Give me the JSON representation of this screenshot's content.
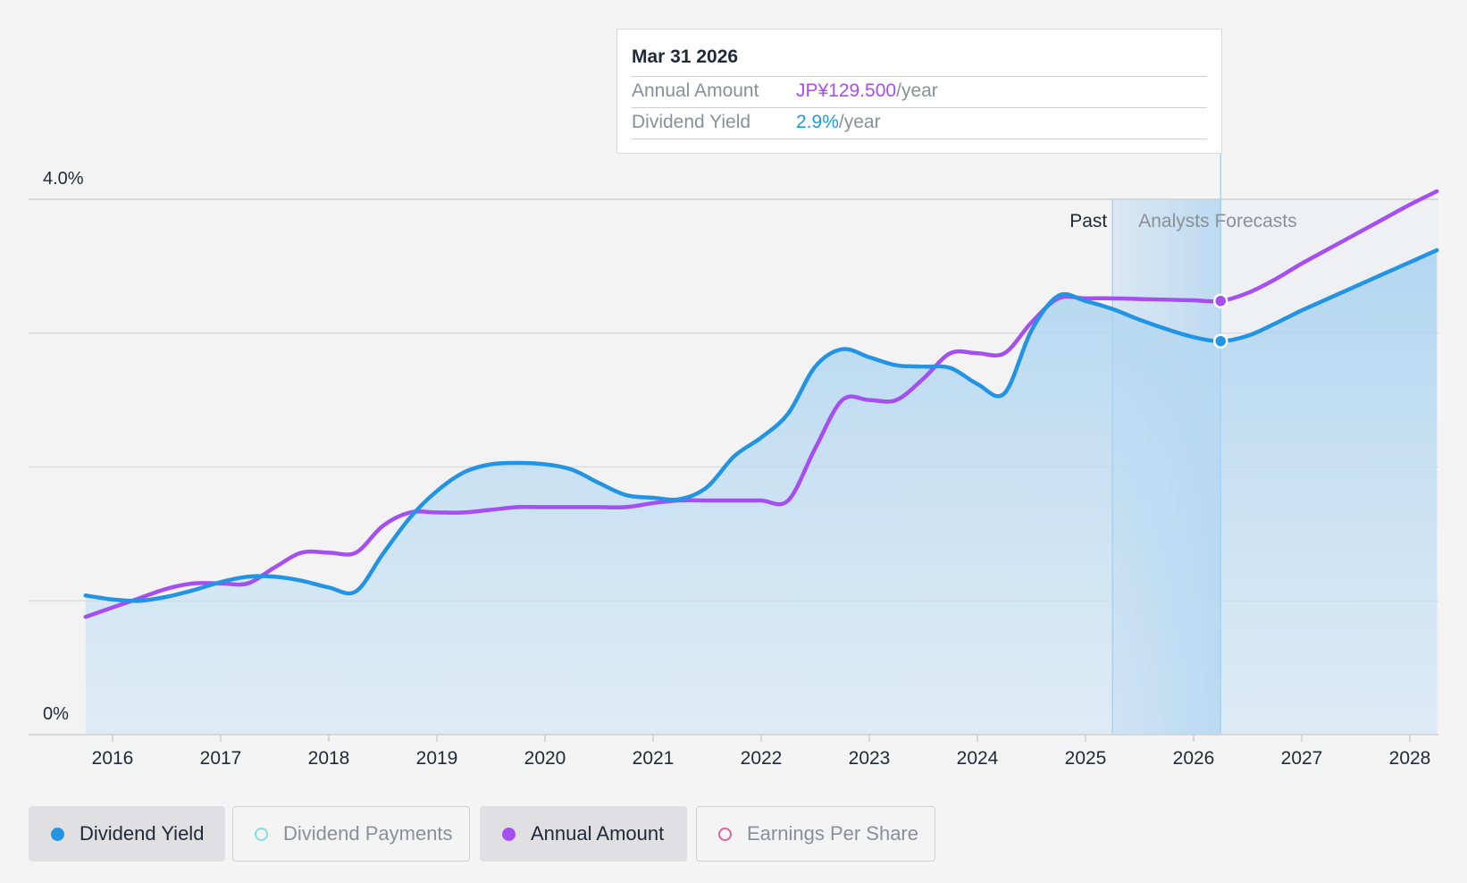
{
  "tooltip": {
    "date": "Mar 31 2026",
    "annual_amount_label": "Annual Amount",
    "annual_amount_value": "JP¥129.500",
    "annual_amount_unit": "/year",
    "dividend_yield_label": "Dividend Yield",
    "dividend_yield_value": "2.9%",
    "dividend_yield_unit": "/year"
  },
  "regions": {
    "past_label": "Past",
    "forecast_label": "Analysts Forecasts"
  },
  "legend": [
    {
      "label": "Dividend Yield",
      "color": "#2394e3",
      "active": true,
      "filled": true
    },
    {
      "label": "Dividend Payments",
      "color": "#7fe0dc",
      "active": false,
      "filled": false
    },
    {
      "label": "Annual Amount",
      "color": "#a64ff0",
      "active": true,
      "filled": true
    },
    {
      "label": "Earnings Per Share",
      "color": "#d9669a",
      "active": false,
      "filled": false
    }
  ],
  "chart_data": {
    "type": "line",
    "y_tick_labels": [
      {
        "value": 4.0,
        "label": "4.0%"
      },
      {
        "value": 0,
        "label": "0%"
      }
    ],
    "ylim": [
      0,
      4.0
    ],
    "xlim": [
      2015.5,
      2028.25
    ],
    "x_ticks": [
      2016,
      2017,
      2018,
      2019,
      2020,
      2021,
      2022,
      2023,
      2024,
      2025,
      2026,
      2027,
      2028
    ],
    "gridlines": [
      1,
      2,
      3,
      4
    ],
    "past_end": 2025.25,
    "forecast_shade_end": 2026.25,
    "highlight_x": 2026.25,
    "colors": {
      "yield": "#2394e3",
      "amount": "#a64ff0"
    },
    "series": [
      {
        "name": "Dividend Yield",
        "values": [
          [
            2015.75,
            1.04
          ],
          [
            2016.0,
            1.01
          ],
          [
            2016.25,
            1.0
          ],
          [
            2016.5,
            1.03
          ],
          [
            2016.75,
            1.08
          ],
          [
            2017.0,
            1.14
          ],
          [
            2017.25,
            1.18
          ],
          [
            2017.5,
            1.18
          ],
          [
            2017.75,
            1.15
          ],
          [
            2018.0,
            1.1
          ],
          [
            2018.25,
            1.07
          ],
          [
            2018.5,
            1.35
          ],
          [
            2018.75,
            1.62
          ],
          [
            2019.0,
            1.82
          ],
          [
            2019.25,
            1.96
          ],
          [
            2019.5,
            2.02
          ],
          [
            2019.75,
            2.03
          ],
          [
            2020.0,
            2.02
          ],
          [
            2020.25,
            1.98
          ],
          [
            2020.5,
            1.88
          ],
          [
            2020.75,
            1.79
          ],
          [
            2021.0,
            1.77
          ],
          [
            2021.25,
            1.76
          ],
          [
            2021.5,
            1.85
          ],
          [
            2021.75,
            2.08
          ],
          [
            2022.0,
            2.22
          ],
          [
            2022.25,
            2.4
          ],
          [
            2022.5,
            2.75
          ],
          [
            2022.75,
            2.88
          ],
          [
            2023.0,
            2.82
          ],
          [
            2023.25,
            2.76
          ],
          [
            2023.5,
            2.75
          ],
          [
            2023.75,
            2.74
          ],
          [
            2024.0,
            2.62
          ],
          [
            2024.25,
            2.55
          ],
          [
            2024.5,
            3.02
          ],
          [
            2024.75,
            3.28
          ],
          [
            2025.0,
            3.24
          ],
          [
            2025.25,
            3.18
          ],
          [
            2025.5,
            3.1
          ],
          [
            2025.75,
            3.03
          ],
          [
            2026.0,
            2.97
          ],
          [
            2026.25,
            2.94
          ],
          [
            2026.5,
            2.98
          ],
          [
            2026.75,
            3.07
          ],
          [
            2027.0,
            3.17
          ],
          [
            2027.25,
            3.26
          ],
          [
            2027.5,
            3.35
          ],
          [
            2027.75,
            3.44
          ],
          [
            2028.0,
            3.53
          ],
          [
            2028.25,
            3.62
          ]
        ]
      },
      {
        "name": "Annual Amount",
        "values": [
          [
            2015.75,
            0.88
          ],
          [
            2016.0,
            0.95
          ],
          [
            2016.25,
            1.02
          ],
          [
            2016.5,
            1.09
          ],
          [
            2016.75,
            1.13
          ],
          [
            2017.0,
            1.13
          ],
          [
            2017.25,
            1.13
          ],
          [
            2017.5,
            1.25
          ],
          [
            2017.75,
            1.36
          ],
          [
            2018.0,
            1.36
          ],
          [
            2018.25,
            1.36
          ],
          [
            2018.5,
            1.56
          ],
          [
            2018.75,
            1.66
          ],
          [
            2019.0,
            1.66
          ],
          [
            2019.25,
            1.66
          ],
          [
            2019.5,
            1.68
          ],
          [
            2019.75,
            1.7
          ],
          [
            2020.0,
            1.7
          ],
          [
            2020.25,
            1.7
          ],
          [
            2020.5,
            1.7
          ],
          [
            2020.75,
            1.7
          ],
          [
            2021.0,
            1.73
          ],
          [
            2021.25,
            1.75
          ],
          [
            2021.5,
            1.75
          ],
          [
            2021.75,
            1.75
          ],
          [
            2022.0,
            1.75
          ],
          [
            2022.25,
            1.75
          ],
          [
            2022.5,
            2.14
          ],
          [
            2022.75,
            2.5
          ],
          [
            2023.0,
            2.5
          ],
          [
            2023.25,
            2.5
          ],
          [
            2023.5,
            2.66
          ],
          [
            2023.75,
            2.85
          ],
          [
            2024.0,
            2.85
          ],
          [
            2024.25,
            2.85
          ],
          [
            2024.5,
            3.08
          ],
          [
            2024.75,
            3.26
          ],
          [
            2025.0,
            3.26
          ],
          [
            2025.25,
            3.26
          ],
          [
            2025.5,
            3.255
          ],
          [
            2025.75,
            3.25
          ],
          [
            2026.0,
            3.245
          ],
          [
            2026.25,
            3.24
          ],
          [
            2026.5,
            3.3
          ],
          [
            2026.75,
            3.4
          ],
          [
            2027.0,
            3.52
          ],
          [
            2027.25,
            3.63
          ],
          [
            2027.5,
            3.74
          ],
          [
            2027.75,
            3.85
          ],
          [
            2028.0,
            3.96
          ],
          [
            2028.25,
            4.06
          ]
        ]
      }
    ]
  }
}
